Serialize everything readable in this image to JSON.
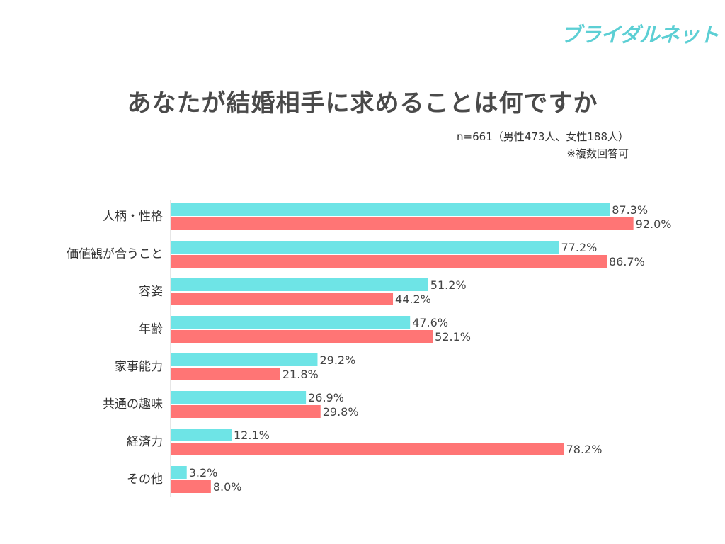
{
  "brand": {
    "logo_text": "ブライダルネット",
    "color": "#5ccfd4"
  },
  "notes": {
    "sample": "n=661（男性473人、女性188人）",
    "multiple": "※複数回答可"
  },
  "chart_data": {
    "type": "bar",
    "orientation": "horizontal",
    "title": "あなたが結婚相手に求めることは何ですか",
    "categories": [
      "人柄・性格",
      "価値観が合うこと",
      "容姿",
      "年齢",
      "家事能力",
      "共通の趣味",
      "経済力",
      "その他"
    ],
    "series": [
      {
        "color": "#6ee4e6",
        "values": [
          87.3,
          77.2,
          51.2,
          47.6,
          29.2,
          26.9,
          12.1,
          3.2
        ]
      },
      {
        "color": "#ff7575",
        "values": [
          92.0,
          86.7,
          44.2,
          52.1,
          21.8,
          29.8,
          78.2,
          8.0
        ]
      }
    ],
    "value_format": "%",
    "xlim": [
      0,
      100
    ],
    "grid": false,
    "legend": false
  }
}
